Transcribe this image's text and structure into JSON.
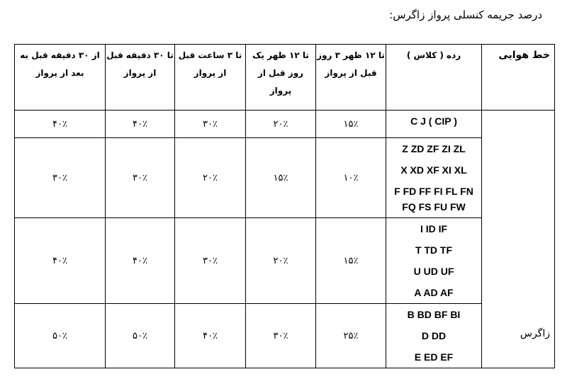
{
  "title": "درصد جریمه کنسلی پرواز زاگرس:",
  "headers": [
    "خط هوایی",
    "رده ( کلاس )",
    "تا ۱۲ ظهر ۳ روز قبل از پرواز",
    "تا ۱۲ ظهر یک روز قبل از پرواز",
    "تا ۳ ساعت قبل از پرواز",
    "تا ۳۰ دقیقه قبل از پرواز",
    "از ۳۰ دقیقه قبل به بعد از پرواز"
  ],
  "airline": "زاگرس",
  "rows": [
    {
      "classes": [
        "C J ( CIP )"
      ],
      "values": [
        "۱۵٪",
        "۲۰٪",
        "۳۰٪",
        "۴۰٪",
        "۴۰٪"
      ]
    },
    {
      "classes": [
        "Z ZD ZF ZI ZL",
        "X XD XF XI XL",
        "F FD FF FI FL FN FQ FS FU FW"
      ],
      "values": [
        "۱۰٪",
        "۱۵٪",
        "۲۰٪",
        "۳۰٪",
        "۳۰٪"
      ]
    },
    {
      "classes": [
        "I ID IF",
        "T TD TF",
        "U UD UF",
        "A AD AF"
      ],
      "values": [
        "۱۵٪",
        "۲۰٪",
        "۳۰٪",
        "۴۰٪",
        "۴۰٪"
      ]
    },
    {
      "classes": [
        "B BD BF BI",
        "D DD",
        "E ED EF"
      ],
      "values": [
        "۲۵٪",
        "۳۰٪",
        "۴۰٪",
        "۵۰٪",
        "۵۰٪"
      ]
    }
  ]
}
